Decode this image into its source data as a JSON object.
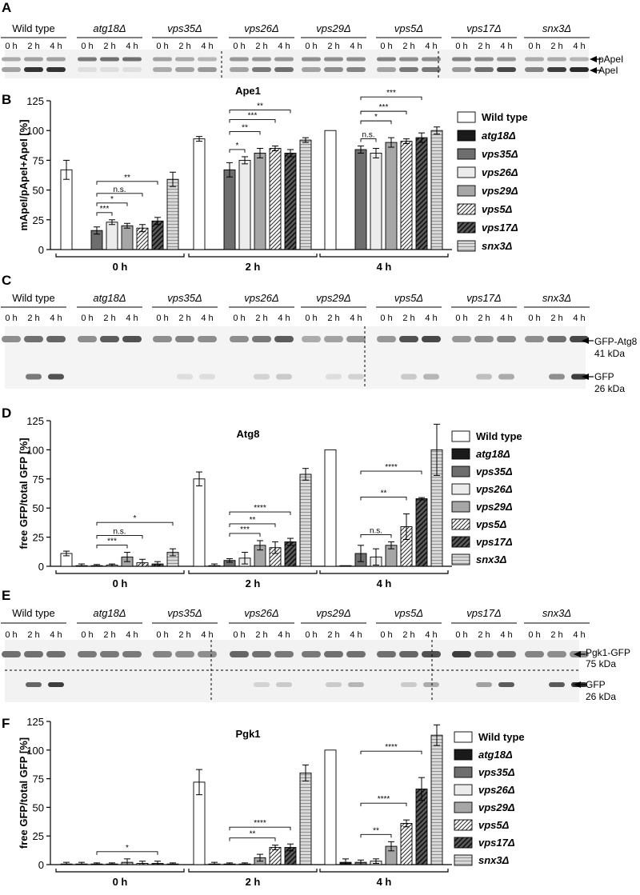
{
  "strains": [
    {
      "name": "Wild type",
      "italic": false
    },
    {
      "name": "atg18Δ",
      "italic": true
    },
    {
      "name": "vps35Δ",
      "italic": true
    },
    {
      "name": "vps26Δ",
      "italic": true
    },
    {
      "name": "vps29Δ",
      "italic": true
    },
    {
      "name": "vps5Δ",
      "italic": true
    },
    {
      "name": "vps17Δ",
      "italic": true
    },
    {
      "name": "snx3Δ",
      "italic": true
    }
  ],
  "timepoints": [
    "0 h",
    "2 h",
    "4 h"
  ],
  "panels": {
    "A": {
      "letter": "A",
      "band_labels": [
        "pApeI",
        "ApeI"
      ]
    },
    "C": {
      "letter": "C",
      "band_labels": [
        "GFP-Atg8",
        "GFP"
      ],
      "band_sizes": [
        "41 kDa",
        "26 kDa"
      ]
    },
    "E": {
      "letter": "E",
      "band_labels": [
        "Pgk1-GFP",
        "GFP"
      ],
      "band_sizes": [
        "75 kDa",
        "26 kDa"
      ]
    }
  },
  "legend_labels": [
    "Wild type",
    "atg18Δ",
    "vps35Δ",
    "vps26Δ",
    "vps29Δ",
    "vps5Δ",
    "vps17Δ",
    "snx3Δ"
  ],
  "chart_data": [
    {
      "panel": "B",
      "type": "bar",
      "title": "Ape1",
      "ylabel": "mApeI/pApeI+ApeI [%]",
      "xlabel": "",
      "ylim": [
        0,
        125
      ],
      "yticks": [
        0,
        25,
        50,
        75,
        100,
        125
      ],
      "categories": [
        "0 h",
        "2 h",
        "4 h"
      ],
      "series": [
        {
          "name": "Wild type",
          "values": [
            67,
            93,
            100
          ],
          "err": [
            8,
            2,
            0
          ]
        },
        {
          "name": "atg18Δ",
          "values": [
            null,
            null,
            null
          ],
          "err": [
            0,
            0,
            0
          ]
        },
        {
          "name": "vps35Δ",
          "values": [
            16,
            67,
            84
          ],
          "err": [
            3,
            6,
            3
          ]
        },
        {
          "name": "vps26Δ",
          "values": [
            23,
            75,
            81
          ],
          "err": [
            2,
            3,
            4
          ]
        },
        {
          "name": "vps29Δ",
          "values": [
            20,
            81,
            90
          ],
          "err": [
            2,
            4,
            4
          ]
        },
        {
          "name": "vps5Δ",
          "values": [
            18,
            85,
            91
          ],
          "err": [
            3,
            2,
            2
          ]
        },
        {
          "name": "vps17Δ",
          "values": [
            24,
            81,
            94
          ],
          "err": [
            3,
            3,
            4
          ]
        },
        {
          "name": "snx3Δ",
          "values": [
            59,
            92,
            100
          ],
          "err": [
            6,
            2,
            3
          ]
        }
      ],
      "significance": [
        {
          "group": 0,
          "from": 2,
          "to": 3,
          "label": "***"
        },
        {
          "group": 0,
          "from": 2,
          "to": 4,
          "label": "*"
        },
        {
          "group": 0,
          "from": 2,
          "to": 5,
          "label": "n.s."
        },
        {
          "group": 0,
          "from": 2,
          "to": 6,
          "label": "**"
        },
        {
          "group": 1,
          "from": 2,
          "to": 3,
          "label": "*"
        },
        {
          "group": 1,
          "from": 2,
          "to": 4,
          "label": "**"
        },
        {
          "group": 1,
          "from": 2,
          "to": 5,
          "label": "***"
        },
        {
          "group": 1,
          "from": 2,
          "to": 6,
          "label": "**"
        },
        {
          "group": 2,
          "from": 2,
          "to": 3,
          "label": "n.s."
        },
        {
          "group": 2,
          "from": 2,
          "to": 4,
          "label": "*"
        },
        {
          "group": 2,
          "from": 2,
          "to": 5,
          "label": "***"
        },
        {
          "group": 2,
          "from": 2,
          "to": 6,
          "label": "***"
        }
      ]
    },
    {
      "panel": "D",
      "type": "bar",
      "title": "Atg8",
      "ylabel": "free GFP/total GFP [%]",
      "xlabel": "",
      "ylim": [
        0,
        125
      ],
      "yticks": [
        0,
        25,
        50,
        75,
        100,
        125
      ],
      "categories": [
        "0 h",
        "2 h",
        "4 h"
      ],
      "series": [
        {
          "name": "Wild type",
          "values": [
            11,
            75,
            100
          ],
          "err": [
            2,
            6,
            0
          ]
        },
        {
          "name": "atg18Δ",
          "values": [
            0.5,
            0.5,
            0
          ],
          "err": [
            1.5,
            1.5,
            0
          ]
        },
        {
          "name": "vps35Δ",
          "values": [
            0.5,
            5,
            11
          ],
          "err": [
            1,
            1.5,
            7
          ]
        },
        {
          "name": "vps26Δ",
          "values": [
            1,
            7,
            8
          ],
          "err": [
            1,
            5,
            7
          ]
        },
        {
          "name": "vps29Δ",
          "values": [
            8,
            18,
            18
          ],
          "err": [
            4,
            4,
            3
          ]
        },
        {
          "name": "vps5Δ",
          "values": [
            3,
            16,
            34
          ],
          "err": [
            3,
            5,
            11
          ]
        },
        {
          "name": "vps17Δ",
          "values": [
            2,
            21,
            58
          ],
          "err": [
            2,
            3,
            1
          ]
        },
        {
          "name": "snx3Δ",
          "values": [
            12,
            79,
            100
          ],
          "err": [
            3,
            5,
            22
          ]
        }
      ],
      "significance": [
        {
          "group": 0,
          "from": 2,
          "to": 4,
          "label": "***"
        },
        {
          "group": 0,
          "from": 2,
          "to": 5,
          "label": "n.s."
        },
        {
          "group": 0,
          "from": 2,
          "to": 7,
          "label": "*"
        },
        {
          "group": 1,
          "from": 2,
          "to": 4,
          "label": "***"
        },
        {
          "group": 1,
          "from": 2,
          "to": 5,
          "label": "**"
        },
        {
          "group": 1,
          "from": 2,
          "to": 6,
          "label": "****"
        },
        {
          "group": 2,
          "from": 2,
          "to": 4,
          "label": "n.s."
        },
        {
          "group": 2,
          "from": 2,
          "to": 5,
          "label": "**"
        },
        {
          "group": 2,
          "from": 2,
          "to": 6,
          "label": "****"
        }
      ]
    },
    {
      "panel": "F",
      "type": "bar",
      "title": "Pgk1",
      "ylabel": "free GFP/total GFP [%]",
      "xlabel": "",
      "ylim": [
        0,
        125
      ],
      "yticks": [
        0,
        25,
        50,
        75,
        100,
        125
      ],
      "categories": [
        "0 h",
        "2 h",
        "4 h"
      ],
      "series": [
        {
          "name": "Wild type",
          "values": [
            0.5,
            72,
            100
          ],
          "err": [
            1.5,
            11,
            0
          ]
        },
        {
          "name": "atg18Δ",
          "values": [
            0.5,
            0.5,
            2
          ],
          "err": [
            1.5,
            1.5,
            3
          ]
        },
        {
          "name": "vps35Δ",
          "values": [
            0.5,
            0.5,
            2
          ],
          "err": [
            1,
            1,
            2
          ]
        },
        {
          "name": "vps26Δ",
          "values": [
            0.5,
            0.5,
            3
          ],
          "err": [
            1,
            1,
            2
          ]
        },
        {
          "name": "vps29Δ",
          "values": [
            2,
            6,
            16
          ],
          "err": [
            3,
            3,
            4
          ]
        },
        {
          "name": "vps5Δ",
          "values": [
            1,
            15,
            36
          ],
          "err": [
            2,
            2,
            3
          ]
        },
        {
          "name": "vps17Δ",
          "values": [
            1,
            15,
            66
          ],
          "err": [
            2,
            3,
            10
          ]
        },
        {
          "name": "snx3Δ",
          "values": [
            0.5,
            80,
            113
          ],
          "err": [
            1,
            7,
            9
          ]
        }
      ],
      "significance": [
        {
          "group": 0,
          "from": 2,
          "to": 6,
          "label": "*"
        },
        {
          "group": 1,
          "from": 2,
          "to": 5,
          "label": "**"
        },
        {
          "group": 1,
          "from": 2,
          "to": 6,
          "label": "****"
        },
        {
          "group": 2,
          "from": 2,
          "to": 4,
          "label": "**"
        },
        {
          "group": 2,
          "from": 2,
          "to": 5,
          "label": "****"
        },
        {
          "group": 2,
          "from": 2,
          "to": 6,
          "label": "****"
        }
      ]
    }
  ]
}
